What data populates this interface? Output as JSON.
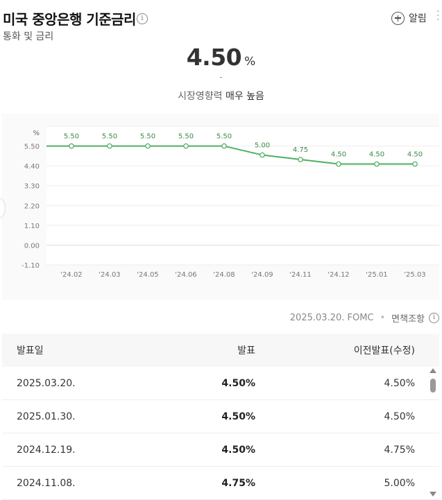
{
  "header": {
    "title": "미국 중앙은행 기준금리",
    "subtitle": "통화 및 금리",
    "alarm_label": "알림"
  },
  "summary": {
    "value": "4.50",
    "unit": "%",
    "change": "-",
    "impact_label": "시장영향력",
    "impact_value": "매우 높음"
  },
  "chart_data": {
    "type": "line",
    "ylabel": "%",
    "categories": [
      "'24.02",
      "'24.03",
      "'24.05",
      "'24.06",
      "'24.08",
      "'24.09",
      "'24.11",
      "'24.12",
      "'25.01",
      "'25.03"
    ],
    "series": [
      {
        "values": [
          5.5,
          5.5,
          5.5,
          5.5,
          5.5,
          5.0,
          4.75,
          4.5,
          4.5,
          4.5
        ]
      }
    ],
    "data_labels": [
      "5.50",
      "5.50",
      "5.50",
      "5.50",
      "5.50",
      "5.00",
      "4.75",
      "4.50",
      "4.50",
      "4.50"
    ],
    "yticks": [
      "5.50",
      "4.40",
      "3.30",
      "2.20",
      "1.10",
      "0.00",
      "-1.10"
    ],
    "ylim": [
      -1.1,
      6.6
    ],
    "grid": true,
    "line_color": "#4caf5f"
  },
  "source": {
    "date": "2025.03.20. FOMC",
    "disclaimer": "면책조항"
  },
  "table": {
    "headers": [
      "발표일",
      "발표",
      "이전발표(수정)"
    ],
    "rows": [
      {
        "date": "2025.03.20.",
        "actual": "4.50%",
        "previous": "4.50%"
      },
      {
        "date": "2025.01.30.",
        "actual": "4.50%",
        "previous": "4.50%"
      },
      {
        "date": "2024.12.19.",
        "actual": "4.50%",
        "previous": "4.75%"
      },
      {
        "date": "2024.11.08.",
        "actual": "4.75%",
        "previous": "5.00%"
      }
    ]
  }
}
